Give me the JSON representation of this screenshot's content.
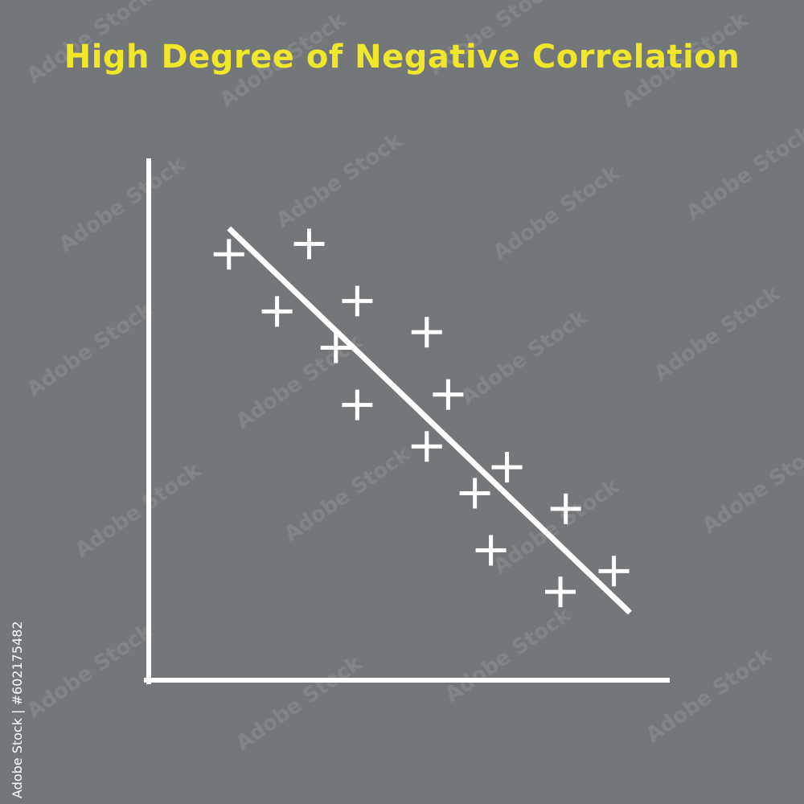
{
  "colors": {
    "background": "#74777a",
    "title": "#f0e62a",
    "marks": "#ffffff"
  },
  "watermark_text": "Adobe Stock",
  "stock_id": "Adobe Stock | #602175482",
  "chart_data": {
    "type": "scatter",
    "title": "High Degree of Negative Correlation",
    "xlabel": "",
    "ylabel": "",
    "xlim": [
      0,
      100
    ],
    "ylim": [
      0,
      100
    ],
    "grid": false,
    "marker": "plus",
    "points": [
      {
        "x": 15,
        "y": 82
      },
      {
        "x": 30,
        "y": 84
      },
      {
        "x": 24,
        "y": 71
      },
      {
        "x": 39,
        "y": 73
      },
      {
        "x": 35,
        "y": 64
      },
      {
        "x": 52,
        "y": 67
      },
      {
        "x": 39,
        "y": 53
      },
      {
        "x": 56,
        "y": 55
      },
      {
        "x": 52,
        "y": 45
      },
      {
        "x": 67,
        "y": 41
      },
      {
        "x": 61,
        "y": 36
      },
      {
        "x": 78,
        "y": 33
      },
      {
        "x": 64,
        "y": 25
      },
      {
        "x": 87,
        "y": 21
      },
      {
        "x": 77,
        "y": 17
      }
    ],
    "trendline": {
      "x": [
        15,
        90
      ],
      "y": [
        87,
        13
      ]
    }
  }
}
